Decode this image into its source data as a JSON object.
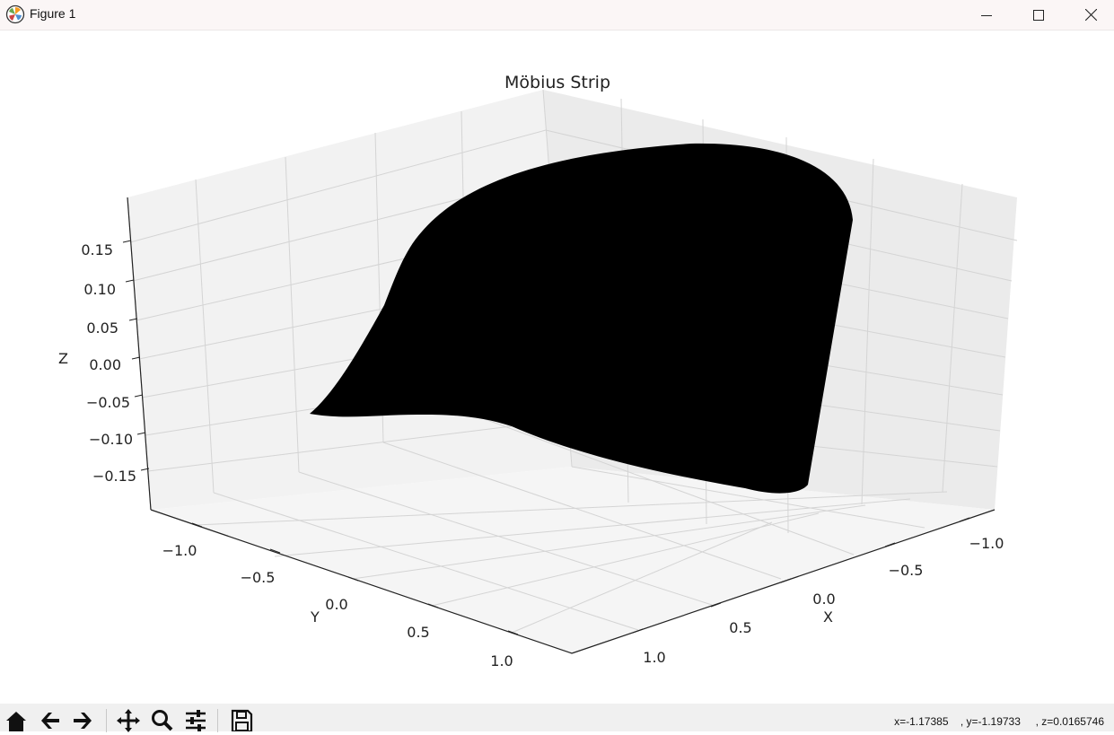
{
  "window": {
    "title": "Figure 1"
  },
  "chart_data": {
    "type": "surface",
    "title": "Möbius Strip",
    "xlabel": "X",
    "ylabel": "Y",
    "zlabel": "Z",
    "x_ticks": [
      "−1.0",
      "−0.5",
      "0.0",
      "0.5",
      "1.0"
    ],
    "y_ticks": [
      "−1.0",
      "−0.5",
      "0.0",
      "0.5",
      "1.0"
    ],
    "z_ticks": [
      "0.15",
      "0.10",
      "0.05",
      "0.00",
      "−0.05",
      "−0.10",
      "−0.15"
    ],
    "surface_color": "#000000",
    "grid": true
  },
  "status": {
    "x": "x=-1.17385",
    "y": ", y=-1.19733",
    "z": ", z=0.0165746"
  },
  "toolbar": {
    "buttons": [
      "home-icon",
      "back-arrow-icon",
      "forward-arrow-icon",
      "pan-icon",
      "zoom-icon",
      "configure-subplots-icon",
      "save-icon"
    ]
  }
}
